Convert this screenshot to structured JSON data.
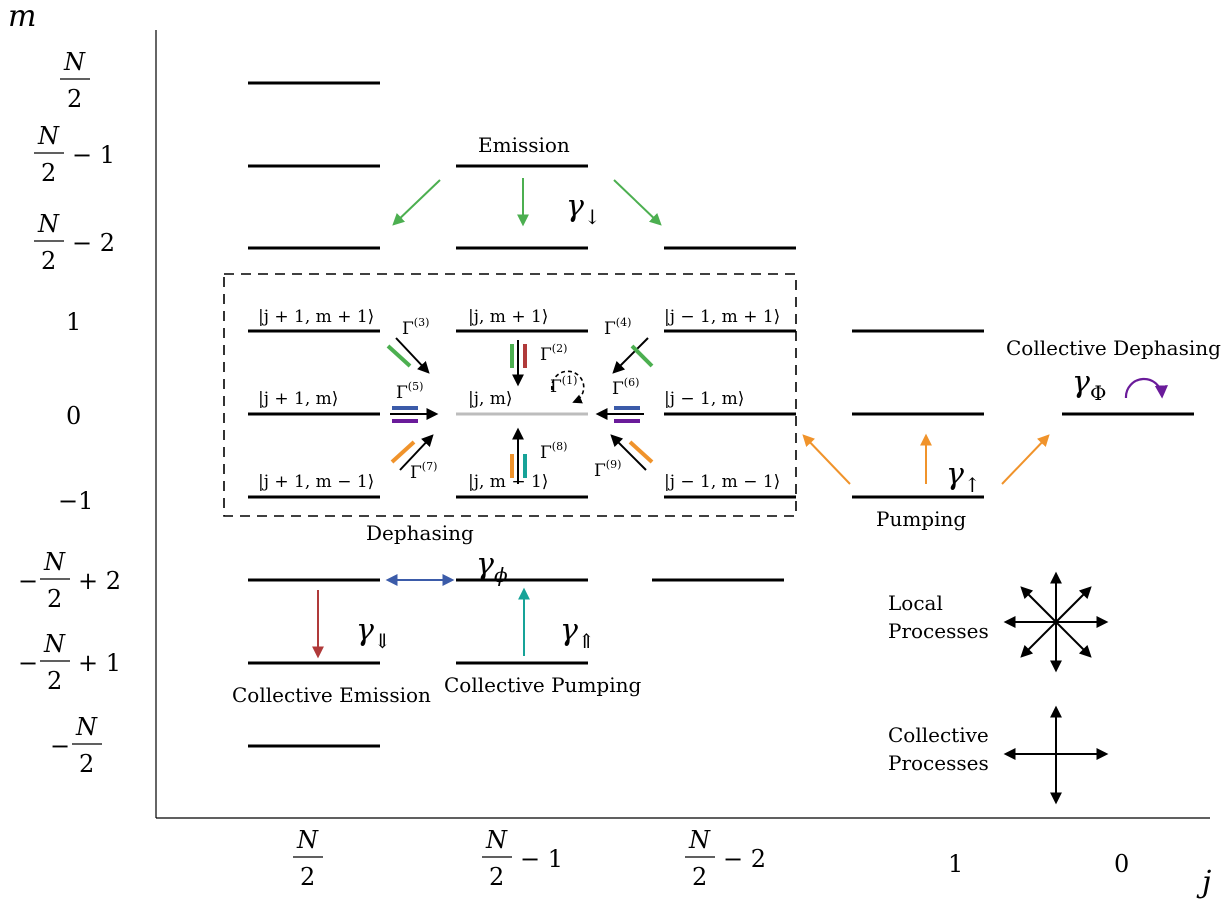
{
  "axes": {
    "y_label": "m",
    "x_label": "j"
  },
  "y_ticks": [
    {
      "prefix": "",
      "num": "N",
      "den": "2",
      "suffix": ""
    },
    {
      "prefix": "",
      "num": "N",
      "den": "2",
      "suffix": "− 1"
    },
    {
      "prefix": "",
      "num": "N",
      "den": "2",
      "suffix": "− 2"
    },
    {
      "plain": "1"
    },
    {
      "plain": "0"
    },
    {
      "plain": "−1"
    },
    {
      "prefix": "−",
      "num": "N",
      "den": "2",
      "suffix": "+ 2"
    },
    {
      "prefix": "−",
      "num": "N",
      "den": "2",
      "suffix": "+ 1"
    },
    {
      "prefix": "−",
      "num": "N",
      "den": "2",
      "suffix": ""
    }
  ],
  "x_ticks": [
    {
      "num": "N",
      "den": "2",
      "suffix": ""
    },
    {
      "num": "N",
      "den": "2",
      "suffix": "− 1"
    },
    {
      "num": "N",
      "den": "2",
      "suffix": "− 2"
    },
    {
      "plain": "1"
    },
    {
      "plain": "0"
    }
  ],
  "labels": {
    "emission": "Emission",
    "pumping": "Pumping",
    "dephasing": "Dephasing",
    "collective_dephasing": "Collective Dephasing",
    "collective_emission": "Collective Emission",
    "collective_pumping": "Collective Pumping",
    "local_processes_1": "Local",
    "local_processes_2": "Processes",
    "collective_processes_1": "Collective",
    "collective_processes_2": "Processes"
  },
  "rates": {
    "emission": {
      "base": "γ",
      "sub": "↓"
    },
    "pumping": {
      "base": "γ",
      "sub": "↑"
    },
    "dephasing": {
      "base": "γ",
      "sub": "ϕ"
    },
    "coll_dephasing": {
      "base": "γ",
      "sub": "Φ"
    },
    "coll_emission": {
      "base": "γ",
      "sub": "⇓"
    },
    "coll_pumping": {
      "base": "γ",
      "sub": "⇑"
    }
  },
  "kets": {
    "k1": "|j + 1, m + 1⟩",
    "k2": "|j, m + 1⟩",
    "k3": "|j − 1, m + 1⟩",
    "k4": "|j + 1, m⟩",
    "k5": "|j, m⟩",
    "k6": "|j − 1, m⟩",
    "k7": "|j + 1, m − 1⟩",
    "k8": "|j, m − 1⟩",
    "k9": "|j − 1, m − 1⟩"
  },
  "gammas": [
    {
      "base": "Γ",
      "sup": "(1)"
    },
    {
      "base": "Γ",
      "sup": "(2)"
    },
    {
      "base": "Γ",
      "sup": "(3)"
    },
    {
      "base": "Γ",
      "sup": "(4)"
    },
    {
      "base": "Γ",
      "sup": "(5)"
    },
    {
      "base": "Γ",
      "sup": "(6)"
    },
    {
      "base": "Γ",
      "sup": "(7)"
    },
    {
      "base": "Γ",
      "sup": "(8)"
    },
    {
      "base": "Γ",
      "sup": "(9)"
    }
  ],
  "colors": {
    "emission": "#4caf50",
    "pumping": "#f0932b",
    "dephasing": "#3b5ba9",
    "collective_dephasing": "#6a1b9a",
    "collective_emission": "#b03a3a",
    "collective_pumping": "#17a398",
    "level": "#000000",
    "central_level": "#bdbdbd"
  }
}
